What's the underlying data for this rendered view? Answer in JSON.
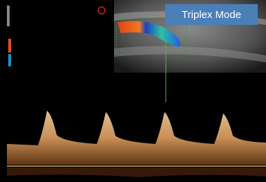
{
  "label": "Triplex Mode"
}
